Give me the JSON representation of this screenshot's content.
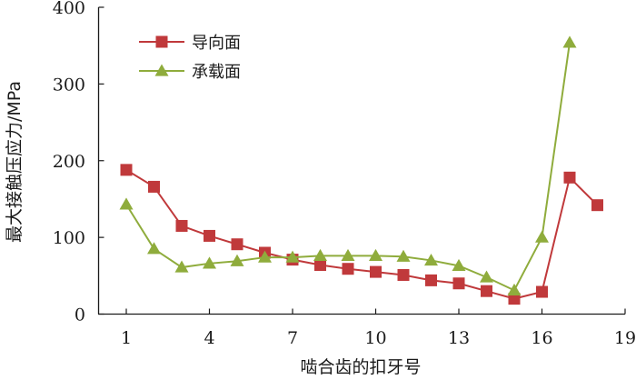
{
  "chart_data": {
    "type": "line",
    "xlabel": "啮合齿的扣牙号",
    "ylabel": "最大接触压应力/MPa",
    "xlim": [
      0,
      19
    ],
    "ylim": [
      0,
      400
    ],
    "xticks": [
      1,
      4,
      7,
      10,
      13,
      16,
      19
    ],
    "yticks": [
      0,
      100,
      200,
      300,
      400
    ],
    "xtick_labels": [
      "1",
      "4",
      "7",
      "10",
      "13",
      "16",
      "19"
    ],
    "ytick_labels": [
      "0",
      "100",
      "200",
      "300",
      "400"
    ],
    "grid": false,
    "legend_position": "top-left",
    "series": [
      {
        "name": "导向面",
        "color": "#c0393b",
        "marker": "square",
        "x": [
          1,
          2,
          3,
          4,
          5,
          6,
          7,
          8,
          9,
          10,
          11,
          12,
          13,
          14,
          15,
          16,
          17,
          18
        ],
        "y": [
          188,
          166,
          115,
          102,
          91,
          80,
          71,
          64,
          59,
          55,
          51,
          44,
          40,
          30,
          20,
          29,
          178,
          142
        ]
      },
      {
        "name": "承载面",
        "color": "#8fac3c",
        "marker": "triangle",
        "x": [
          1,
          2,
          3,
          4,
          5,
          6,
          7,
          8,
          9,
          10,
          11,
          12,
          13,
          14,
          15,
          16,
          17
        ],
        "y": [
          143,
          85,
          61,
          66,
          69,
          74,
          74,
          76,
          76,
          76,
          75,
          70,
          63,
          48,
          31,
          100,
          354
        ]
      }
    ]
  }
}
